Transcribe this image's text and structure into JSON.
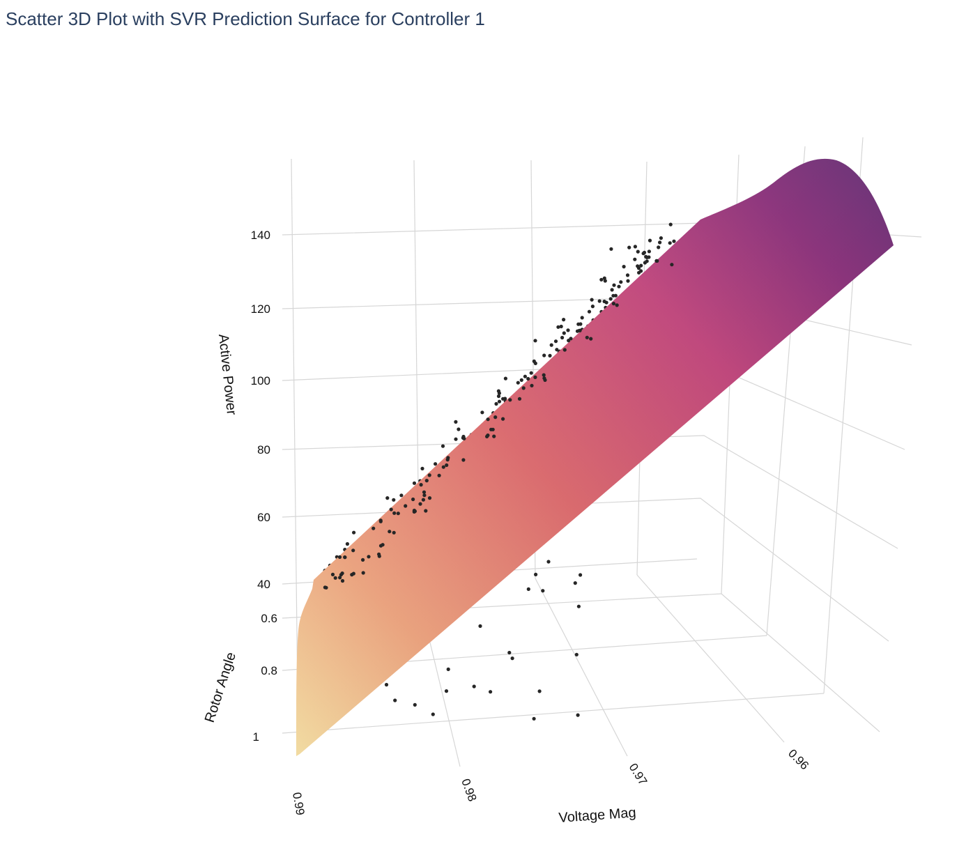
{
  "title": "Scatter 3D Plot with SVR Prediction Surface for Controller 1",
  "chart_data": {
    "type": "scatter3d",
    "title": "Scatter 3D Plot with SVR Prediction Surface for Controller 1",
    "axes": {
      "x": {
        "title": "Voltage Mag",
        "ticks": [
          "0.99",
          "0.98",
          "0.97",
          "0.96"
        ],
        "range": [
          0.955,
          0.99
        ]
      },
      "y": {
        "title": "Rotor Angle",
        "ticks": [
          "0.6",
          "0.8",
          "1"
        ],
        "range": [
          0.5,
          1.0
        ]
      },
      "z": {
        "title": "Active Power",
        "ticks": [
          "40",
          "60",
          "80",
          "100",
          "120",
          "140"
        ],
        "range": [
          40,
          155
        ]
      }
    },
    "surface": {
      "name": "SVR Prediction Surface",
      "colorscale": "magma-like (light yellow at low Active Power to dark purple at high Active Power)",
      "colors": [
        "#fbe2a4",
        "#f2a57e",
        "#e1696d",
        "#c5447d",
        "#8d2f7c",
        "#6b2f78"
      ],
      "z_min": 40,
      "z_max": 155
    },
    "points_color": "#262626"
  }
}
